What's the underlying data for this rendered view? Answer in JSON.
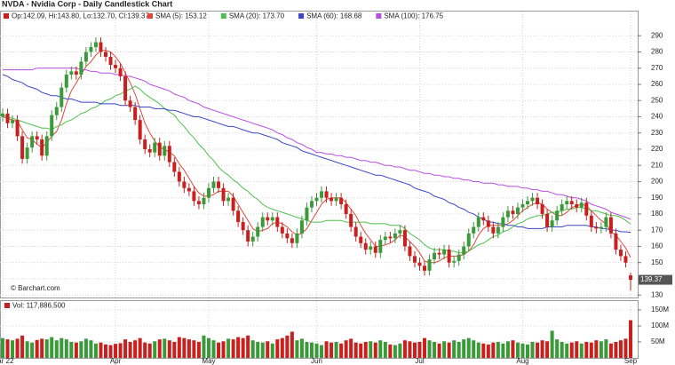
{
  "chart_data": {
    "type": "candlestick",
    "title": "NVDA - Nvidia Corp - Daily Candlestick Chart",
    "ohlc_label": "Op:142.09, Hi:143.80, Lo:132.70, Cl:139.37",
    "source": "© Barchart.com",
    "categories": [
      "Mar 22",
      null,
      null,
      null,
      null,
      null,
      null,
      null,
      null,
      null,
      null,
      null,
      null,
      null,
      null,
      null,
      null,
      null,
      null,
      null,
      null,
      null,
      null,
      "Apr",
      null,
      null,
      null,
      null,
      null,
      null,
      null,
      null,
      null,
      null,
      null,
      null,
      null,
      null,
      null,
      null,
      null,
      null,
      "May",
      null,
      null,
      null,
      null,
      null,
      null,
      null,
      null,
      null,
      null,
      null,
      null,
      null,
      null,
      null,
      null,
      null,
      null,
      null,
      null,
      null,
      "Jun",
      null,
      null,
      null,
      null,
      null,
      null,
      null,
      null,
      null,
      null,
      null,
      null,
      null,
      null,
      null,
      null,
      null,
      null,
      null,
      null,
      "Jul",
      null,
      null,
      null,
      null,
      null,
      null,
      null,
      null,
      null,
      null,
      null,
      null,
      null,
      null,
      null,
      null,
      null,
      null,
      null,
      null,
      "Aug",
      null,
      null,
      null,
      null,
      null,
      null,
      null,
      null,
      null,
      null,
      null,
      null,
      null,
      null,
      null,
      null,
      null,
      null,
      null,
      null,
      null,
      "Sep"
    ],
    "open": [
      240,
      242,
      236,
      238,
      228,
      214,
      221,
      228,
      226,
      216,
      228,
      241,
      246,
      258,
      266,
      268,
      266,
      274,
      280,
      283,
      286,
      280,
      277,
      272,
      270,
      265,
      250,
      246,
      238,
      226,
      220,
      218,
      224,
      216,
      222,
      212,
      206,
      200,
      196,
      194,
      188,
      186,
      190,
      196,
      200,
      196,
      188,
      190,
      182,
      175,
      170,
      163,
      166,
      172,
      178,
      176,
      178,
      172,
      168,
      165,
      162,
      168,
      176,
      184,
      188,
      190,
      194,
      190,
      188,
      190,
      186,
      180,
      172,
      166,
      162,
      158,
      160,
      156,
      164,
      166,
      165,
      168,
      170,
      160,
      154,
      150,
      148,
      145,
      152,
      156,
      155,
      158,
      150,
      151,
      155,
      160,
      168,
      172,
      178,
      176,
      172,
      168,
      172,
      178,
      182,
      180,
      184,
      186,
      188,
      190,
      186,
      180,
      172,
      176,
      182,
      186,
      188,
      186,
      184,
      187,
      179,
      172,
      171,
      172,
      178,
      168,
      158,
      154,
      142.09
    ],
    "high": [
      245,
      245,
      241,
      241,
      231,
      224,
      231,
      231,
      229,
      231,
      244,
      249,
      261,
      269,
      271,
      271,
      277,
      283,
      286,
      289,
      289,
      283,
      280,
      275,
      273,
      268,
      253,
      249,
      241,
      229,
      223,
      227,
      227,
      225,
      225,
      215,
      209,
      203,
      199,
      197,
      191,
      193,
      199,
      203,
      203,
      199,
      193,
      193,
      185,
      178,
      173,
      169,
      175,
      181,
      181,
      181,
      181,
      175,
      171,
      168,
      171,
      179,
      187,
      191,
      193,
      197,
      197,
      193,
      193,
      193,
      189,
      183,
      175,
      169,
      165,
      163,
      163,
      167,
      169,
      169,
      171,
      173,
      173,
      163,
      157,
      153,
      151,
      155,
      159,
      159,
      161,
      161,
      154,
      158,
      163,
      171,
      175,
      181,
      181,
      179,
      175,
      175,
      181,
      185,
      185,
      187,
      189,
      191,
      193,
      193,
      189,
      183,
      179,
      185,
      189,
      191,
      191,
      189,
      190,
      190,
      182,
      175,
      175,
      181,
      181,
      171,
      161,
      157,
      143.8
    ],
    "low": [
      237,
      233,
      233,
      225,
      211,
      211,
      218,
      223,
      213,
      213,
      225,
      238,
      243,
      255,
      263,
      263,
      263,
      271,
      277,
      280,
      277,
      274,
      269,
      267,
      262,
      247,
      243,
      235,
      223,
      217,
      215,
      215,
      213,
      213,
      209,
      203,
      197,
      193,
      191,
      185,
      183,
      183,
      187,
      193,
      193,
      185,
      185,
      179,
      172,
      167,
      160,
      160,
      163,
      169,
      173,
      173,
      169,
      165,
      162,
      159,
      159,
      165,
      173,
      181,
      185,
      187,
      187,
      185,
      185,
      183,
      177,
      169,
      163,
      159,
      155,
      155,
      153,
      153,
      161,
      162,
      162,
      165,
      157,
      151,
      147,
      145,
      142,
      142,
      149,
      152,
      152,
      147,
      147,
      148,
      152,
      157,
      165,
      169,
      173,
      169,
      165,
      165,
      169,
      175,
      177,
      177,
      181,
      183,
      185,
      183,
      177,
      169,
      169,
      173,
      179,
      183,
      183,
      181,
      181,
      176,
      169,
      168,
      168,
      169,
      165,
      155,
      151,
      147,
      132.7
    ],
    "close": [
      242,
      236,
      238,
      228,
      214,
      221,
      228,
      226,
      216,
      228,
      241,
      246,
      258,
      266,
      268,
      266,
      274,
      280,
      283,
      286,
      280,
      277,
      272,
      270,
      265,
      250,
      246,
      238,
      226,
      220,
      218,
      224,
      216,
      222,
      212,
      206,
      200,
      196,
      194,
      188,
      186,
      190,
      196,
      200,
      196,
      188,
      190,
      182,
      175,
      170,
      163,
      166,
      172,
      178,
      176,
      178,
      172,
      168,
      165,
      162,
      168,
      176,
      184,
      188,
      190,
      194,
      190,
      188,
      190,
      186,
      180,
      172,
      166,
      162,
      158,
      160,
      156,
      164,
      166,
      165,
      168,
      170,
      160,
      154,
      150,
      148,
      145,
      152,
      156,
      155,
      158,
      150,
      151,
      155,
      160,
      168,
      172,
      178,
      176,
      172,
      168,
      172,
      178,
      182,
      180,
      184,
      186,
      188,
      190,
      186,
      180,
      172,
      176,
      182,
      186,
      188,
      186,
      184,
      187,
      179,
      172,
      171,
      172,
      178,
      168,
      158,
      154,
      150,
      139.37
    ],
    "last_close_label": "139.37",
    "up_color": "#3a9a3a",
    "down_color": "#c8201e",
    "series": [
      {
        "name": "SMA (5): 153.12",
        "color": "#e0483c",
        "values": [
          240,
          239,
          238,
          237,
          232,
          227,
          226,
          223,
          221,
          224,
          228,
          231,
          238,
          248,
          256,
          261,
          266,
          271,
          274,
          278,
          281,
          281,
          280,
          277,
          273,
          267,
          261,
          254,
          245,
          236,
          230,
          225,
          221,
          220,
          218,
          216,
          211,
          207,
          202,
          197,
          193,
          191,
          191,
          192,
          194,
          194,
          194,
          191,
          186,
          181,
          176,
          171,
          169,
          170,
          171,
          174,
          175,
          174,
          172,
          169,
          167,
          168,
          171,
          176,
          181,
          186,
          189,
          190,
          190,
          190,
          187,
          183,
          179,
          173,
          168,
          164,
          160,
          160,
          161,
          162,
          164,
          167,
          166,
          163,
          160,
          156,
          151,
          150,
          150,
          151,
          153,
          154,
          154,
          154,
          155,
          157,
          161,
          167,
          171,
          173,
          173,
          173,
          173,
          174,
          176,
          179,
          182,
          184,
          186,
          187,
          186,
          183,
          181,
          179,
          179,
          181,
          184,
          185,
          186,
          185,
          182,
          179,
          176,
          174,
          169,
          167,
          163,
          159,
          153.12
        ]
      },
      {
        "name": "SMA (20): 173.70",
        "color": "#4ec04e",
        "values": [
          241,
          240,
          239,
          238,
          237,
          236,
          235,
          234,
          233,
          233,
          232,
          234,
          235,
          237,
          238,
          240,
          242,
          243,
          245,
          246,
          248,
          250,
          251,
          253,
          254,
          256,
          257,
          259,
          257,
          254,
          252,
          250,
          248,
          245,
          243,
          241,
          237,
          234,
          230,
          227,
          223,
          220,
          216,
          213,
          209,
          206,
          204,
          201,
          199,
          196,
          194,
          191,
          189,
          186,
          184,
          183,
          182,
          181,
          180,
          179,
          178,
          177,
          176,
          175,
          175,
          175,
          176,
          176,
          176,
          176,
          175,
          175,
          175,
          175,
          175,
          174,
          174,
          174,
          174,
          173,
          173,
          173,
          171,
          168,
          166,
          164,
          161,
          159,
          158,
          158,
          158,
          157,
          157,
          156,
          156,
          157,
          159,
          161,
          162,
          164,
          166,
          167,
          169,
          170,
          172,
          174,
          175,
          177,
          178,
          179,
          179,
          180,
          181,
          181,
          182,
          183,
          183,
          184,
          184,
          183,
          182,
          182,
          181,
          180,
          179,
          179,
          178,
          176,
          173.7
        ]
      },
      {
        "name": "SMA (60): 168.68",
        "color": "#3c46c8",
        "values": [
          266,
          265,
          263,
          262,
          261,
          259,
          258,
          257,
          255,
          254,
          253,
          253,
          252,
          251,
          251,
          250,
          249,
          249,
          249,
          249,
          248,
          248,
          248,
          248,
          247,
          247,
          247,
          247,
          246,
          246,
          246,
          245,
          245,
          245,
          244,
          244,
          243,
          242,
          241,
          240,
          240,
          239,
          238,
          237,
          236,
          235,
          234,
          234,
          233,
          232,
          231,
          230,
          230,
          229,
          228,
          227,
          226,
          224,
          223,
          222,
          221,
          219,
          218,
          217,
          216,
          215,
          214,
          213,
          212,
          211,
          210,
          209,
          208,
          207,
          206,
          205,
          204,
          204,
          203,
          202,
          201,
          200,
          199,
          198,
          196,
          195,
          194,
          193,
          191,
          190,
          189,
          187,
          186,
          184,
          183,
          181,
          180,
          178,
          177,
          175,
          175,
          174,
          174,
          173,
          173,
          172,
          172,
          171,
          171,
          171,
          171,
          172,
          172,
          172,
          172,
          173,
          173,
          173,
          173,
          173,
          172,
          172,
          171,
          171,
          170,
          170,
          169,
          169,
          168.68
        ]
      },
      {
        "name": "SMA (100): 176.75",
        "color": "#b84ee0",
        "values": [
          269,
          269,
          269,
          269,
          269,
          269,
          269,
          270,
          270,
          270,
          270,
          270,
          270,
          270,
          270,
          270,
          269,
          269,
          268,
          268,
          267,
          267,
          267,
          266,
          266,
          265,
          265,
          264,
          263,
          262,
          260,
          259,
          258,
          257,
          256,
          254,
          253,
          252,
          250,
          249,
          248,
          246,
          245,
          244,
          243,
          242,
          241,
          240,
          239,
          238,
          237,
          236,
          235,
          234,
          233,
          232,
          230,
          229,
          227,
          226,
          224,
          223,
          221,
          220,
          218,
          218,
          217,
          217,
          216,
          216,
          215,
          215,
          214,
          213,
          213,
          212,
          212,
          211,
          210,
          210,
          209,
          209,
          208,
          207,
          207,
          206,
          205,
          205,
          204,
          204,
          203,
          203,
          202,
          202,
          201,
          201,
          200,
          200,
          199,
          199,
          199,
          198,
          198,
          197,
          197,
          197,
          196,
          196,
          195,
          195,
          194,
          194,
          193,
          192,
          192,
          191,
          190,
          190,
          189,
          188,
          186,
          185,
          184,
          183,
          181,
          180,
          179,
          178,
          176.75
        ]
      }
    ],
    "ylim": [
      129,
      300
    ],
    "yticks": [
      130,
      140,
      150,
      160,
      170,
      180,
      190,
      200,
      210,
      220,
      230,
      240,
      250,
      260,
      270,
      280,
      290
    ],
    "grid": true,
    "volume": {
      "label": "Vol: 117,886,500",
      "values": [
        62000000,
        58000000,
        55000000,
        60000000,
        70000000,
        52000000,
        48000000,
        56000000,
        60000000,
        58000000,
        65000000,
        55000000,
        62000000,
        58000000,
        50000000,
        48000000,
        52000000,
        60000000,
        55000000,
        45000000,
        48000000,
        42000000,
        40000000,
        44000000,
        46000000,
        58000000,
        50000000,
        55000000,
        62000000,
        48000000,
        45000000,
        52000000,
        58000000,
        60000000,
        55000000,
        50000000,
        65000000,
        62000000,
        58000000,
        55000000,
        50000000,
        70000000,
        62000000,
        55000000,
        48000000,
        52000000,
        60000000,
        58000000,
        65000000,
        62000000,
        70000000,
        55000000,
        50000000,
        48000000,
        52000000,
        45000000,
        58000000,
        62000000,
        70000000,
        82000000,
        55000000,
        60000000,
        50000000,
        48000000,
        45000000,
        40000000,
        52000000,
        48000000,
        50000000,
        45000000,
        55000000,
        60000000,
        48000000,
        45000000,
        50000000,
        52000000,
        48000000,
        55000000,
        50000000,
        42000000,
        40000000,
        45000000,
        55000000,
        52000000,
        48000000,
        50000000,
        62000000,
        55000000,
        50000000,
        45000000,
        52000000,
        48000000,
        55000000,
        50000000,
        58000000,
        62000000,
        55000000,
        48000000,
        45000000,
        42000000,
        48000000,
        50000000,
        45000000,
        52000000,
        55000000,
        48000000,
        45000000,
        42000000,
        50000000,
        48000000,
        55000000,
        52000000,
        85000000,
        58000000,
        50000000,
        45000000,
        48000000,
        52000000,
        45000000,
        50000000,
        48000000,
        55000000,
        52000000,
        58000000,
        45000000,
        50000000,
        55000000,
        60000000,
        117886500
      ],
      "ylim": [
        0,
        175000000
      ],
      "yticks": [
        {
          "value": 50000000,
          "label": "50M"
        },
        {
          "value": 100000000,
          "label": "100M"
        },
        {
          "value": 150000000,
          "label": "150M"
        }
      ]
    }
  }
}
